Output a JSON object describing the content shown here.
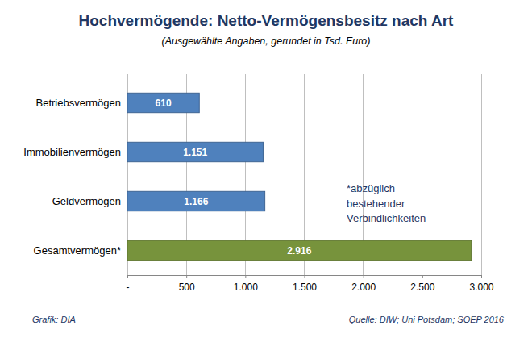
{
  "chart_data": {
    "type": "bar",
    "title": "Hochvermögende: Netto-Vermögensbesitz nach Art",
    "subtitle": "(Ausgewählte Angaben, gerundet in Tsd. Euro)",
    "orientation": "horizontal",
    "categories": [
      "Betriebsvermögen",
      "Immobilienvermögen",
      "Geldvermögen",
      "Gesamtvermögen*"
    ],
    "values": [
      610,
      1151,
      1166,
      2916
    ],
    "value_labels": [
      "610",
      "1.151",
      "1.166",
      "2.916"
    ],
    "colors": [
      "#4f81bd",
      "#4f81bd",
      "#4f81bd",
      "#77933c"
    ],
    "data_labels": true,
    "xlim": [
      0,
      3000
    ],
    "xticks": [
      {
        "value": 0,
        "label": "-"
      },
      500,
      {
        "value": 1000,
        "label": "1.000"
      },
      {
        "value": 1500,
        "label": "1.500"
      },
      {
        "value": 2000,
        "label": "2.000"
      },
      {
        "value": 2500,
        "label": "2.500"
      },
      {
        "value": 3000,
        "label": "3.000"
      }
    ],
    "grid": true,
    "annotations": [
      "*abzüglich bestehender Verbindlichkeiten",
      "Grafik: DIA",
      "Quelle: DIW; Uni Potsdam; SOEP 2016"
    ]
  }
}
